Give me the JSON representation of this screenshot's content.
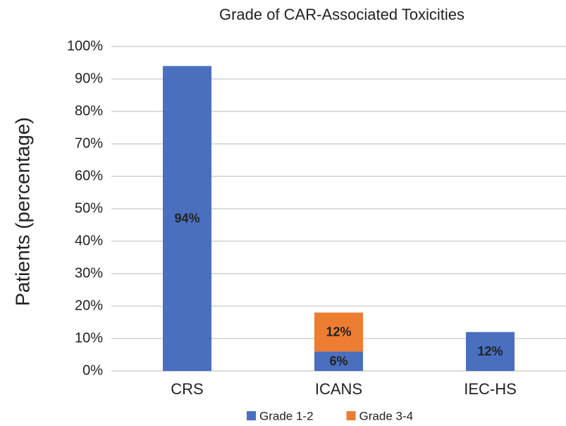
{
  "chart_data": {
    "type": "stacked_bar",
    "title": "Grade of CAR-Associated Toxicities",
    "y_label": "Patients (percentage)",
    "categories": [
      "CRS",
      "ICANS",
      "IEC-HS"
    ],
    "series": [
      {
        "name": "Grade 1-2",
        "color": "#4a6fbe",
        "label_color": "#ffffff",
        "values": [
          94,
          6,
          12
        ],
        "value_labels": [
          "94%",
          "6%",
          "12%"
        ]
      },
      {
        "name": "Grade 3-4",
        "color": "#ed7d31",
        "label_color": "#222222",
        "values": [
          null,
          12,
          null
        ],
        "value_labels": [
          null,
          "12%",
          null
        ]
      }
    ],
    "ylim": [
      0,
      100
    ],
    "yticks": [
      {
        "value": 0,
        "label": "0%"
      },
      {
        "value": 10,
        "label": "10%"
      },
      {
        "value": 20,
        "label": "20%"
      },
      {
        "value": 30,
        "label": "30%"
      },
      {
        "value": 40,
        "label": "40%"
      },
      {
        "value": 50,
        "label": "50%"
      },
      {
        "value": 60,
        "label": "60%"
      },
      {
        "value": 70,
        "label": "70%"
      },
      {
        "value": 80,
        "label": "80%"
      },
      {
        "value": 90,
        "label": "90%"
      },
      {
        "value": 100,
        "label": "100%"
      }
    ],
    "grid": true,
    "legend": "bottom"
  }
}
